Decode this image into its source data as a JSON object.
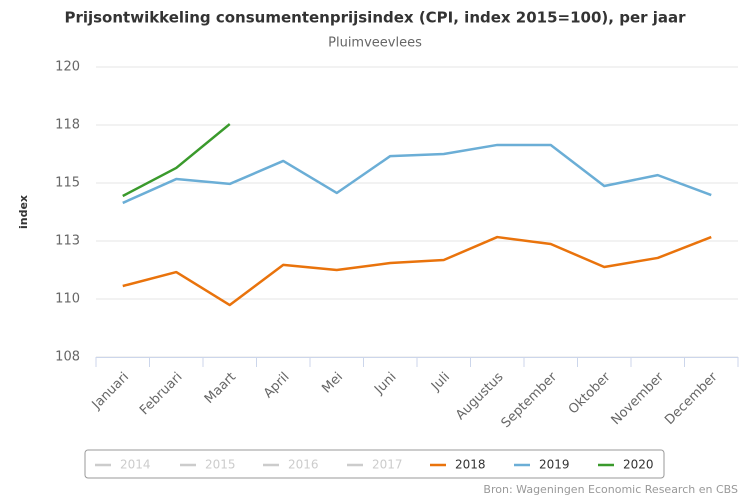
{
  "chart_data": {
    "type": "line",
    "title": "Prijsontwikkeling consumentenprijsindex (CPI, index 2015=100), per jaar",
    "subtitle": "Pluimveevlees",
    "y_label": "index",
    "source": "Bron: Wageningen Economic Research en CBS",
    "categories": [
      "Januari",
      "Februari",
      "Maart",
      "April",
      "Mei",
      "Juni",
      "Juli",
      "Augustus",
      "September",
      "Oktober",
      "November",
      "December"
    ],
    "ylim": [
      107.5,
      120
    ],
    "yticks": [
      {
        "value": 107.5,
        "label": "108"
      },
      {
        "value": 110,
        "label": "110"
      },
      {
        "value": 112.5,
        "label": "113"
      },
      {
        "value": 115,
        "label": "115"
      },
      {
        "value": 117.5,
        "label": "118"
      },
      {
        "value": 120,
        "label": "120"
      }
    ],
    "grid": true,
    "legend": "bottom",
    "series": [
      {
        "name": "2014",
        "color": "#cccccc",
        "values": [
          null,
          null,
          null,
          null,
          null,
          null,
          null,
          null,
          null,
          null,
          null,
          null
        ]
      },
      {
        "name": "2015",
        "color": "#cccccc",
        "values": [
          null,
          null,
          null,
          null,
          null,
          null,
          null,
          null,
          null,
          null,
          null,
          null
        ]
      },
      {
        "name": "2016",
        "color": "#cccccc",
        "values": [
          null,
          null,
          null,
          null,
          null,
          null,
          null,
          null,
          null,
          null,
          null,
          null
        ]
      },
      {
        "name": "2017",
        "color": "#cccccc",
        "values": [
          null,
          null,
          null,
          null,
          null,
          null,
          null,
          null,
          null,
          null,
          null,
          null
        ]
      },
      {
        "name": "2018",
        "color": "#e9730c",
        "values": [
          110.56,
          111.16,
          109.74,
          111.47,
          111.25,
          111.55,
          111.68,
          112.67,
          112.37,
          111.38,
          111.77,
          112.67
        ]
      },
      {
        "name": "2019",
        "color": "#6baed6",
        "values": [
          114.14,
          115.17,
          114.96,
          115.95,
          114.57,
          116.16,
          116.25,
          116.64,
          116.64,
          114.87,
          115.34,
          114.48
        ]
      },
      {
        "name": "2020",
        "color": "#3a9a2c",
        "values": [
          114.44,
          115.65,
          117.54,
          null,
          null,
          null,
          null,
          null,
          null,
          null,
          null,
          null
        ]
      }
    ]
  }
}
